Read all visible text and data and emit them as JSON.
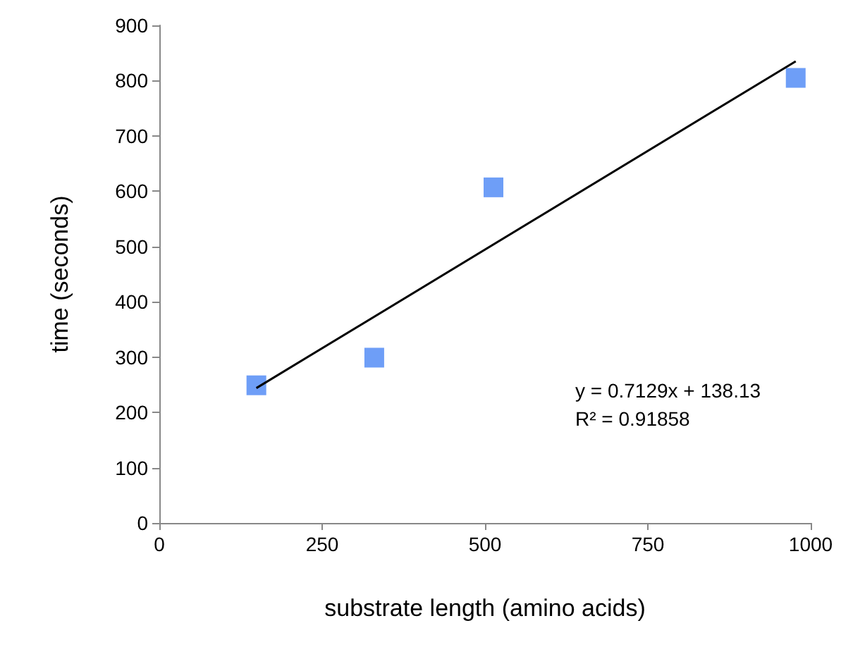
{
  "chart_data": {
    "type": "scatter",
    "xlabel": "substrate length (amino acids)",
    "ylabel": "time (seconds)",
    "x": [
      149,
      330,
      513,
      977
    ],
    "series": [
      {
        "type": "scatter",
        "color": "#4a86f5",
        "marker": "square",
        "values": [
          249,
          299,
          607,
          805
        ]
      },
      {
        "type": "line",
        "color": "#000000",
        "marker": "none",
        "x": [
          149,
          977
        ],
        "values": [
          244,
          835
        ]
      }
    ],
    "xlim": [
      0,
      1000
    ],
    "xticks": [
      0,
      250,
      500,
      750,
      1000
    ],
    "ylim": [
      0,
      900
    ],
    "yticks": [
      0,
      100,
      200,
      300,
      400,
      500,
      600,
      700,
      800,
      900
    ],
    "annotations": [
      "y = 0.7129x + 138.13",
      "R² = 0.91858"
    ],
    "grid": false
  }
}
